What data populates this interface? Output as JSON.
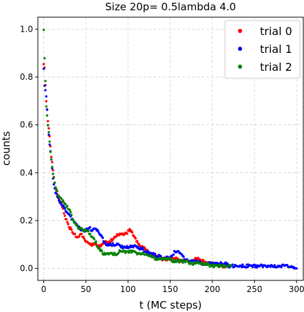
{
  "chart_data": {
    "type": "scatter",
    "title": "Size 20p= 0.5lambda 4.0",
    "xlabel": "t (MC steps)",
    "ylabel": "counts",
    "xlim": [
      -7,
      308
    ],
    "ylim": [
      -0.05,
      1.05
    ],
    "x_ticks": [
      0,
      50,
      100,
      150,
      200,
      250,
      300
    ],
    "y_ticks": [
      0.0,
      0.2,
      0.4,
      0.6,
      0.8,
      1.0
    ],
    "grid": true,
    "legend_position": "top-right",
    "series": [
      {
        "name": "trial 0",
        "color": "#ff0000",
        "x_range": [
          0,
          219
        ],
        "points": [
          [
            0,
            0.86
          ],
          [
            1,
            0.84
          ],
          [
            3,
            0.7
          ],
          [
            5,
            0.62
          ],
          [
            7,
            0.55
          ],
          [
            9,
            0.47
          ],
          [
            11,
            0.41
          ],
          [
            13,
            0.36
          ],
          [
            15,
            0.32
          ],
          [
            17,
            0.3
          ],
          [
            19,
            0.28
          ],
          [
            21,
            0.27
          ],
          [
            23,
            0.25
          ],
          [
            25,
            0.22
          ],
          [
            27,
            0.2
          ],
          [
            29,
            0.18
          ],
          [
            31,
            0.17
          ],
          [
            33,
            0.16
          ],
          [
            35,
            0.15
          ],
          [
            37,
            0.14
          ],
          [
            39,
            0.13
          ],
          [
            41,
            0.13
          ],
          [
            43,
            0.14
          ],
          [
            45,
            0.14
          ],
          [
            47,
            0.13
          ],
          [
            49,
            0.12
          ],
          [
            51,
            0.11
          ],
          [
            53,
            0.1
          ],
          [
            55,
            0.1
          ],
          [
            57,
            0.1
          ],
          [
            60,
            0.1
          ],
          [
            63,
            0.1
          ],
          [
            66,
            0.09
          ],
          [
            69,
            0.1
          ],
          [
            72,
            0.11
          ],
          [
            75,
            0.11
          ],
          [
            78,
            0.11
          ],
          [
            81,
            0.12
          ],
          [
            84,
            0.13
          ],
          [
            87,
            0.14
          ],
          [
            90,
            0.14
          ],
          [
            93,
            0.14
          ],
          [
            96,
            0.14
          ],
          [
            99,
            0.15
          ],
          [
            102,
            0.16
          ],
          [
            105,
            0.15
          ],
          [
            108,
            0.13
          ],
          [
            111,
            0.11
          ],
          [
            114,
            0.1
          ],
          [
            117,
            0.09
          ],
          [
            120,
            0.08
          ],
          [
            123,
            0.07
          ],
          [
            126,
            0.06
          ],
          [
            129,
            0.06
          ],
          [
            132,
            0.05
          ],
          [
            135,
            0.05
          ],
          [
            138,
            0.05
          ],
          [
            141,
            0.04
          ],
          [
            144,
            0.04
          ],
          [
            147,
            0.04
          ],
          [
            150,
            0.04
          ],
          [
            153,
            0.04
          ],
          [
            156,
            0.04
          ],
          [
            159,
            0.04
          ],
          [
            162,
            0.03
          ],
          [
            165,
            0.03
          ],
          [
            168,
            0.03
          ],
          [
            171,
            0.03
          ],
          [
            174,
            0.03
          ],
          [
            177,
            0.03
          ],
          [
            180,
            0.04
          ],
          [
            183,
            0.04
          ],
          [
            186,
            0.03
          ],
          [
            189,
            0.03
          ],
          [
            192,
            0.03
          ],
          [
            195,
            0.02
          ],
          [
            198,
            0.02
          ],
          [
            201,
            0.02
          ],
          [
            204,
            0.02
          ],
          [
            207,
            0.02
          ],
          [
            210,
            0.02
          ],
          [
            213,
            0.01
          ],
          [
            216,
            0.01
          ],
          [
            219,
            0.01
          ]
        ]
      },
      {
        "name": "trial 1",
        "color": "#0000ff",
        "x_range": [
          0,
          300
        ],
        "points": [
          [
            0,
            0.84
          ],
          [
            1,
            0.76
          ],
          [
            3,
            0.72
          ],
          [
            5,
            0.6
          ],
          [
            7,
            0.52
          ],
          [
            9,
            0.45
          ],
          [
            11,
            0.38
          ],
          [
            13,
            0.33
          ],
          [
            15,
            0.31
          ],
          [
            17,
            0.3
          ],
          [
            19,
            0.28
          ],
          [
            21,
            0.27
          ],
          [
            23,
            0.26
          ],
          [
            25,
            0.25
          ],
          [
            27,
            0.24
          ],
          [
            29,
            0.23
          ],
          [
            31,
            0.22
          ],
          [
            33,
            0.21
          ],
          [
            35,
            0.2
          ],
          [
            37,
            0.19
          ],
          [
            39,
            0.18
          ],
          [
            41,
            0.17
          ],
          [
            43,
            0.17
          ],
          [
            45,
            0.16
          ],
          [
            47,
            0.16
          ],
          [
            49,
            0.16
          ],
          [
            51,
            0.16
          ],
          [
            53,
            0.17
          ],
          [
            55,
            0.17
          ],
          [
            57,
            0.16
          ],
          [
            60,
            0.17
          ],
          [
            63,
            0.16
          ],
          [
            66,
            0.15
          ],
          [
            69,
            0.13
          ],
          [
            72,
            0.11
          ],
          [
            75,
            0.1
          ],
          [
            78,
            0.1
          ],
          [
            81,
            0.1
          ],
          [
            84,
            0.1
          ],
          [
            87,
            0.1
          ],
          [
            90,
            0.1
          ],
          [
            93,
            0.09
          ],
          [
            96,
            0.09
          ],
          [
            99,
            0.09
          ],
          [
            102,
            0.09
          ],
          [
            105,
            0.09
          ],
          [
            108,
            0.1
          ],
          [
            111,
            0.09
          ],
          [
            114,
            0.08
          ],
          [
            117,
            0.08
          ],
          [
            120,
            0.07
          ],
          [
            123,
            0.07
          ],
          [
            126,
            0.06
          ],
          [
            129,
            0.06
          ],
          [
            132,
            0.06
          ],
          [
            135,
            0.05
          ],
          [
            138,
            0.05
          ],
          [
            141,
            0.04
          ],
          [
            144,
            0.04
          ],
          [
            147,
            0.05
          ],
          [
            150,
            0.05
          ],
          [
            153,
            0.06
          ],
          [
            156,
            0.07
          ],
          [
            159,
            0.07
          ],
          [
            162,
            0.06
          ],
          [
            165,
            0.05
          ],
          [
            168,
            0.04
          ],
          [
            171,
            0.03
          ],
          [
            174,
            0.03
          ],
          [
            177,
            0.03
          ],
          [
            180,
            0.03
          ],
          [
            184,
            0.03
          ],
          [
            188,
            0.02
          ],
          [
            192,
            0.02
          ],
          [
            196,
            0.02
          ],
          [
            200,
            0.02
          ],
          [
            204,
            0.02
          ],
          [
            208,
            0.02
          ],
          [
            212,
            0.02
          ],
          [
            216,
            0.02
          ],
          [
            220,
            0.01
          ],
          [
            224,
            0.01
          ],
          [
            228,
            0.01
          ],
          [
            232,
            0.01
          ],
          [
            236,
            0.01
          ],
          [
            240,
            0.01
          ],
          [
            245,
            0.01
          ],
          [
            250,
            0.01
          ],
          [
            255,
            0.01
          ],
          [
            260,
            0.01
          ],
          [
            265,
            0.01
          ],
          [
            270,
            0.01
          ],
          [
            275,
            0.01
          ],
          [
            280,
            0.01
          ],
          [
            285,
            0.01
          ],
          [
            290,
            0.01
          ],
          [
            295,
            0.01
          ],
          [
            300,
            0.0
          ]
        ]
      },
      {
        "name": "trial 2",
        "color": "#008000",
        "x_range": [
          0,
          222
        ],
        "points": [
          [
            0,
            1.0
          ],
          [
            1,
            0.88
          ],
          [
            3,
            0.68
          ],
          [
            5,
            0.6
          ],
          [
            7,
            0.53
          ],
          [
            9,
            0.45
          ],
          [
            11,
            0.4
          ],
          [
            13,
            0.36
          ],
          [
            15,
            0.33
          ],
          [
            17,
            0.31
          ],
          [
            19,
            0.3
          ],
          [
            21,
            0.29
          ],
          [
            23,
            0.28
          ],
          [
            25,
            0.27
          ],
          [
            27,
            0.26
          ],
          [
            29,
            0.25
          ],
          [
            31,
            0.24
          ],
          [
            33,
            0.22
          ],
          [
            35,
            0.2
          ],
          [
            37,
            0.19
          ],
          [
            39,
            0.18
          ],
          [
            41,
            0.17
          ],
          [
            43,
            0.17
          ],
          [
            45,
            0.17
          ],
          [
            47,
            0.16
          ],
          [
            49,
            0.16
          ],
          [
            51,
            0.16
          ],
          [
            53,
            0.15
          ],
          [
            55,
            0.14
          ],
          [
            57,
            0.13
          ],
          [
            60,
            0.12
          ],
          [
            63,
            0.1
          ],
          [
            66,
            0.08
          ],
          [
            69,
            0.07
          ],
          [
            72,
            0.06
          ],
          [
            75,
            0.06
          ],
          [
            78,
            0.06
          ],
          [
            81,
            0.06
          ],
          [
            84,
            0.06
          ],
          [
            87,
            0.06
          ],
          [
            90,
            0.07
          ],
          [
            93,
            0.07
          ],
          [
            96,
            0.07
          ],
          [
            99,
            0.07
          ],
          [
            102,
            0.07
          ],
          [
            105,
            0.07
          ],
          [
            108,
            0.07
          ],
          [
            111,
            0.06
          ],
          [
            114,
            0.06
          ],
          [
            117,
            0.06
          ],
          [
            120,
            0.06
          ],
          [
            123,
            0.05
          ],
          [
            126,
            0.05
          ],
          [
            129,
            0.05
          ],
          [
            132,
            0.04
          ],
          [
            135,
            0.04
          ],
          [
            138,
            0.04
          ],
          [
            141,
            0.04
          ],
          [
            144,
            0.04
          ],
          [
            147,
            0.04
          ],
          [
            150,
            0.04
          ],
          [
            153,
            0.03
          ],
          [
            156,
            0.03
          ],
          [
            159,
            0.03
          ],
          [
            162,
            0.03
          ],
          [
            165,
            0.03
          ],
          [
            168,
            0.03
          ],
          [
            171,
            0.03
          ],
          [
            174,
            0.02
          ],
          [
            177,
            0.02
          ],
          [
            180,
            0.02
          ],
          [
            183,
            0.02
          ],
          [
            186,
            0.02
          ],
          [
            189,
            0.02
          ],
          [
            192,
            0.02
          ],
          [
            195,
            0.02
          ],
          [
            198,
            0.01
          ],
          [
            201,
            0.01
          ],
          [
            204,
            0.01
          ],
          [
            207,
            0.01
          ],
          [
            210,
            0.01
          ],
          [
            213,
            0.01
          ],
          [
            216,
            0.01
          ],
          [
            219,
            0.01
          ],
          [
            222,
            0.01
          ]
        ]
      }
    ]
  }
}
